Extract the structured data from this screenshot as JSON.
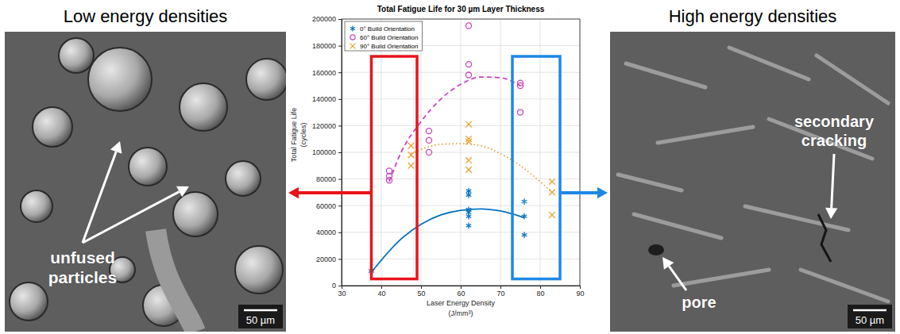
{
  "chart_data": {
    "type": "scatter",
    "title": "Total Fatigue Life for 30 µm Layer Thickness",
    "xlabel": [
      "Laser Energy Density",
      "(J/mm³)"
    ],
    "ylabel": [
      "Total Fatigue Life",
      "(cycles)"
    ],
    "xlim": [
      30,
      90
    ],
    "xticks": [
      30,
      40,
      50,
      60,
      70,
      80,
      90
    ],
    "ylim": [
      0,
      200000
    ],
    "yticks": [
      0,
      20000,
      40000,
      60000,
      80000,
      100000,
      120000,
      140000,
      160000,
      180000,
      200000
    ],
    "grid": true,
    "legend": "upper left",
    "series": [
      {
        "name": "0° Build Orientation",
        "color": "#0072bd",
        "marker": "asterisk",
        "x": [
          37.5,
          62,
          62,
          62,
          62,
          62,
          62,
          76,
          76,
          76
        ],
        "values": [
          11000,
          71000,
          68000,
          57000,
          55000,
          52000,
          45000,
          63000,
          52000,
          38000
        ]
      },
      {
        "name": "60° Build Orientation",
        "color": "#cc44bb",
        "marker": "circle",
        "x": [
          42,
          42,
          42,
          52,
          52,
          52,
          62,
          62,
          62,
          75,
          75,
          75
        ],
        "values": [
          86000,
          82000,
          79000,
          116000,
          109000,
          100000,
          195000,
          166000,
          158000,
          152000,
          150000,
          130000
        ]
      },
      {
        "name": "90° Build Orientation",
        "color": "#eda030",
        "marker": "x",
        "x": [
          47.5,
          47.5,
          47.5,
          62,
          62,
          62,
          62,
          62,
          83,
          83,
          83
        ],
        "values": [
          105000,
          98000,
          90000,
          121000,
          110000,
          108000,
          94000,
          87000,
          78000,
          70000,
          53000
        ]
      }
    ],
    "trend_lines": [
      {
        "color": "#0072bd",
        "line_style": "solid",
        "x": [
          37.5,
          45,
          50,
          55,
          60,
          65,
          70,
          76
        ],
        "values": [
          10000,
          35000,
          46000,
          53000,
          56500,
          57500,
          56000,
          51000
        ]
      },
      {
        "color": "#cc44bb",
        "line_style": "dashed",
        "x": [
          42,
          45,
          50,
          55,
          60,
          65,
          70,
          75
        ],
        "values": [
          78000,
          100000,
          123000,
          140000,
          151000,
          156500,
          156000,
          150000
        ]
      },
      {
        "color": "#eda030",
        "line_style": "dotted",
        "x": [
          47.5,
          55,
          60,
          65,
          70,
          75,
          80,
          83
        ],
        "values": [
          99000,
          106000,
          106500,
          105000,
          99000,
          90000,
          78000,
          70000
        ]
      }
    ],
    "highlights": [
      {
        "color": "#e8141c",
        "x": [
          37.5,
          49
        ],
        "y": [
          5000,
          172000
        ]
      },
      {
        "color": "#1e88e5",
        "x": [
          73,
          85
        ],
        "y": [
          5000,
          172000
        ]
      }
    ]
  },
  "panels": {
    "left": {
      "title": "Low energy densities",
      "annotations": [
        "unfused particles"
      ],
      "scale_bar": "50 µm"
    },
    "right": {
      "title": "High energy densities",
      "annotations": [
        "secondary cracking",
        "pore"
      ],
      "scale_bar": "50 µm"
    }
  }
}
